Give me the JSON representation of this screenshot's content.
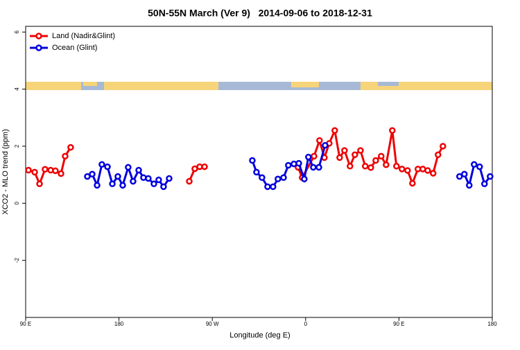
{
  "chart_data": {
    "type": "line",
    "title": "50N-55N March (Ver 9)   2014-09-06 to 2018-12-31",
    "xlabel": "Longitude (deg E)",
    "ylabel": "XCO2 - MLO trend (ppm)",
    "xlim": [
      90,
      540
    ],
    "xticks": [
      {
        "value": 90,
        "label": "90 E"
      },
      {
        "value": 180,
        "label": "180"
      },
      {
        "value": 270,
        "label": "90 W"
      },
      {
        "value": 360,
        "label": "0"
      },
      {
        "value": 450,
        "label": "90 E"
      },
      {
        "value": 540,
        "label": "180"
      }
    ],
    "ylim": [
      -4,
      6.2
    ],
    "yticks": [
      -2,
      0,
      2,
      4,
      6
    ],
    "legend": "top-left",
    "series": [
      {
        "name": "Land (Nadir&Glint)",
        "color": "#ee0000",
        "x": [
          92.7,
          98.7,
          103.4,
          108.7,
          114.1,
          118.7,
          124.1,
          128.1,
          133.4,
          null,
          247.8,
          253.1,
          257.8,
          262.5,
          null,
          352.7,
          356.7,
          368.1,
          373.4,
          378.1,
          382.8,
          388.1,
          392.8,
          397.5,
          402.8,
          407.5,
          412.9,
          417.5,
          422.9,
          427.6,
          432.9,
          437.6,
          443.6,
          447.6,
          452.9,
          458.3,
          463.0,
          468.3,
          473.0,
          477.7,
          483.0,
          487.7,
          492.4
        ],
        "values": [
          1.16,
          1.09,
          0.68,
          1.19,
          1.16,
          1.14,
          1.04,
          1.65,
          1.96,
          null,
          0.77,
          1.21,
          1.28,
          1.28,
          null,
          1.26,
          0.9,
          1.65,
          2.2,
          1.6,
          2.1,
          2.55,
          1.6,
          1.85,
          1.3,
          1.7,
          1.85,
          1.3,
          1.25,
          1.5,
          1.65,
          1.35,
          2.55,
          1.3,
          1.2,
          1.15,
          0.7,
          1.2,
          1.2,
          1.15,
          1.05,
          1.7,
          2.0
        ]
      },
      {
        "name": "Ocean (Glint)",
        "color": "#0000dd",
        "x": [
          149.5,
          154.2,
          158.9,
          163.5,
          168.9,
          173.6,
          178.9,
          183.6,
          188.9,
          193.6,
          199.0,
          203.6,
          208.3,
          213.7,
          218.3,
          223.0,
          228.4,
          null,
          308.6,
          312.6,
          317.9,
          323.3,
          328.6,
          333.3,
          338.7,
          343.3,
          348.7,
          353.4,
          358.7,
          362.7,
          367.4,
          372.8,
          378.8,
          null,
          508.4,
          513.1,
          517.8,
          522.5,
          527.8,
          532.5,
          537.9
        ],
        "values": [
          0.94,
          1.02,
          0.63,
          1.36,
          1.28,
          0.68,
          0.94,
          0.63,
          1.26,
          0.77,
          1.16,
          0.9,
          0.87,
          0.68,
          0.82,
          0.58,
          0.87,
          null,
          1.5,
          1.09,
          0.9,
          0.58,
          0.58,
          0.85,
          0.9,
          1.33,
          1.38,
          1.4,
          0.85,
          1.62,
          1.26,
          1.26,
          2.03,
          null,
          0.94,
          1.02,
          0.63,
          1.36,
          1.28,
          0.68,
          0.94
        ]
      }
    ]
  }
}
